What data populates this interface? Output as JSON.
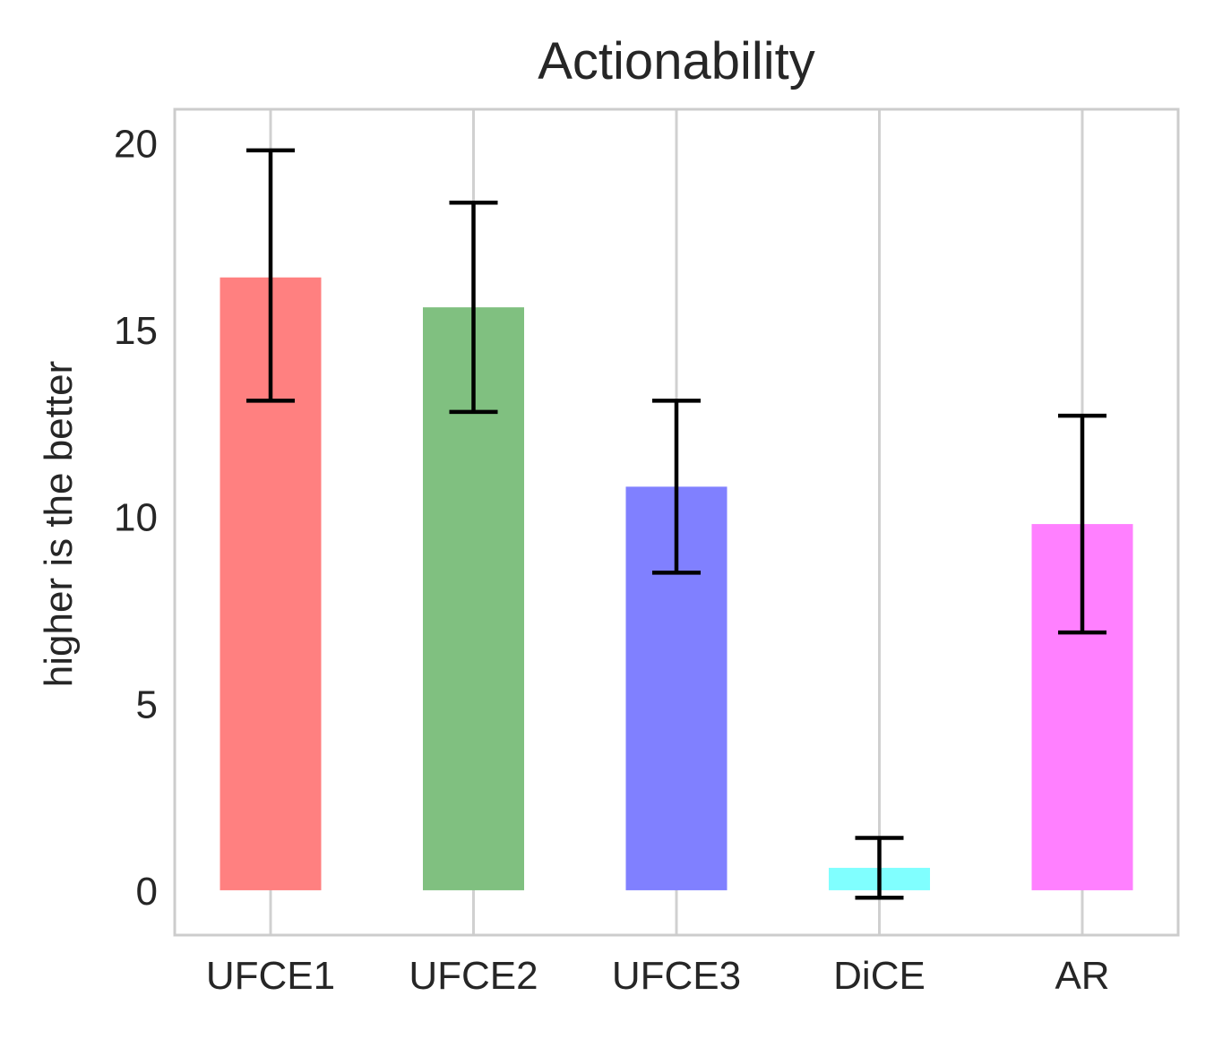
{
  "chart_data": {
    "type": "bar",
    "title": "Actionability",
    "xlabel": "",
    "ylabel": "higher is the better",
    "categories": [
      "UFCE1",
      "UFCE2",
      "UFCE3",
      "DiCE",
      "AR"
    ],
    "values": [
      16.4,
      15.6,
      10.8,
      0.6,
      9.8
    ],
    "errors": [
      {
        "lower": 13.1,
        "upper": 19.8
      },
      {
        "lower": 12.8,
        "upper": 18.4
      },
      {
        "lower": 8.5,
        "upper": 13.1
      },
      {
        "lower": -0.2,
        "upper": 1.4
      },
      {
        "lower": 6.9,
        "upper": 12.7
      }
    ],
    "colors": [
      "#ff8080",
      "#80c080",
      "#8080ff",
      "#80ffff",
      "#ff80ff"
    ],
    "error_color": "#000000",
    "ylim": [
      -1.2,
      20.9
    ],
    "yticks": [
      0,
      5,
      10,
      15,
      20
    ],
    "grid": "vertical",
    "legend": "none"
  }
}
